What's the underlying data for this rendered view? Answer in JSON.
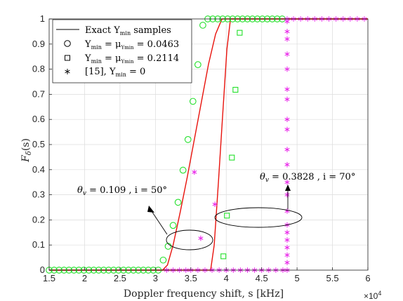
{
  "chart_data": {
    "type": "line",
    "xlabel": "Doppler frequency shift, s [kHz]",
    "ylabel": "F_δ(s)",
    "x_exponent": "×10^4",
    "xlim": [
      15000,
      60000
    ],
    "ylim": [
      0,
      1
    ],
    "xticks": [
      15000,
      20000,
      25000,
      30000,
      35000,
      40000,
      45000,
      50000,
      55000,
      60000
    ],
    "xtick_labels": [
      "1.5",
      "2",
      "2.5",
      "3",
      "3.5",
      "4",
      "4.5",
      "5",
      "5.5",
      "6"
    ],
    "yticks": [
      0,
      0.1,
      0.2,
      0.3,
      0.4,
      0.5,
      0.6,
      0.7,
      0.8,
      0.9,
      1
    ],
    "ytick_labels": [
      "0",
      "0.1",
      "0.2",
      "0.3",
      "0.4",
      "0.5",
      "0.6",
      "0.7",
      "0.8",
      "0.9",
      "1"
    ],
    "grid": true,
    "legend_position": "top-left",
    "legend": [
      {
        "label": "Exact Υmin samples",
        "marker": "line",
        "color": "#000000"
      },
      {
        "label": "Υmin = μΥmin = 0.0463",
        "marker": "circle",
        "color": "#000000"
      },
      {
        "label": "Υmin = μΥmin = 0.2114",
        "marker": "square",
        "color": "#000000"
      },
      {
        "label": "[15], Υmin = 0",
        "marker": "star",
        "color": "#000000"
      }
    ],
    "series": [
      {
        "color": "#e8120c",
        "style": "line",
        "x": [
          15000,
          31000,
          31700,
          32500,
          33500,
          34500,
          35500,
          36500,
          37500,
          38500,
          39400,
          60000
        ],
        "y": [
          0,
          0,
          0.02,
          0.1,
          0.23,
          0.37,
          0.52,
          0.67,
          0.82,
          0.94,
          1.0,
          1.0
        ]
      },
      {
        "color": "#e8120c",
        "style": "line",
        "x": [
          15000,
          37800,
          38300,
          38900,
          39500,
          40100,
          40600,
          60000
        ],
        "y": [
          0,
          0,
          0.1,
          0.35,
          0.62,
          0.88,
          1.0,
          1.0
        ]
      },
      {
        "color": "#22e02a",
        "marker": "circle",
        "x": [
          15000,
          15700,
          16400,
          17100,
          17800,
          18500,
          19200,
          19900,
          20600,
          21300,
          22000,
          22700,
          23400,
          24100,
          24800,
          25500,
          26200,
          26900,
          27600,
          28300,
          29000,
          29700,
          30400,
          31100,
          31800,
          32500,
          33200,
          33900,
          34600,
          35300,
          36000,
          36700,
          37400,
          38100,
          38800,
          39500,
          40200,
          40900,
          41600,
          42300,
          43000,
          43700,
          44400,
          45100,
          45800,
          46500,
          47200,
          47900
        ],
        "y": [
          0,
          0,
          0,
          0,
          0,
          0,
          0,
          0,
          0,
          0,
          0,
          0,
          0,
          0,
          0,
          0,
          0,
          0,
          0,
          0,
          0,
          0,
          0,
          0.04,
          0.095,
          0.178,
          0.27,
          0.398,
          0.52,
          0.672,
          0.818,
          0.975,
          1,
          1,
          1,
          1,
          1,
          1,
          1,
          1,
          1,
          1,
          1,
          1,
          1,
          1,
          1,
          1
        ]
      },
      {
        "color": "#22e02a",
        "marker": "square",
        "x": [
          39600,
          40100,
          40800,
          41300,
          41900
        ],
        "y": [
          0.055,
          0.217,
          0.448,
          0.718,
          0.945
        ]
      },
      {
        "color": "#e81ee8",
        "marker": "star",
        "x": [
          31600,
          32500,
          33400,
          34300,
          35000,
          36000,
          37000,
          38000,
          39000,
          40000,
          41000,
          42000,
          43000,
          44000,
          45000,
          46000,
          47000,
          48000,
          48600,
          48600,
          48600,
          48600,
          48600,
          48600,
          48600,
          48600,
          48600,
          48600,
          48600,
          48600,
          48600,
          48600,
          48600,
          48600,
          48600,
          48600,
          48600,
          48600,
          48600,
          48600,
          49500,
          50500,
          51500,
          52500,
          53500,
          54500,
          55500,
          56500,
          57500,
          58500,
          59500,
          36400,
          38400,
          35500
        ],
        "y": [
          0,
          0,
          0,
          0,
          0,
          0,
          0,
          0,
          0,
          0,
          0,
          0,
          0,
          0,
          0,
          0,
          0,
          0,
          0,
          0.03,
          0.06,
          0.09,
          0.12,
          0.15,
          0.18,
          0.235,
          0.3,
          0.35,
          0.42,
          0.48,
          0.56,
          0.6,
          0.68,
          0.72,
          0.8,
          0.86,
          0.92,
          0.95,
          0.99,
          1,
          1,
          1,
          1,
          1,
          1,
          1,
          1,
          1,
          1,
          1,
          1,
          0.127,
          0.262,
          0.39
        ]
      }
    ],
    "annotations": [
      {
        "text": "θv = 0.109 , i = 50°",
        "points_to": [
          34000,
          0.12
        ]
      },
      {
        "text": "θv = 0.3828 , i = 70°",
        "points_to": [
          44000,
          0.28
        ]
      }
    ],
    "axis_exponent_label": "×10^4"
  },
  "labels": {
    "xlabel": "Doppler frequency shift, s [kHz]",
    "exponent_base": "×10",
    "exponent_pow": "4",
    "ylabel_main": "F",
    "ylabel_sub": "δ",
    "ylabel_arg": "(s)",
    "legend1": "Exact Υ",
    "legend1_sub": "min",
    "legend1_tail": " samples",
    "legend2_pre": "Υ",
    "legend2_sub1": "min",
    "legend2_mid": " = μ",
    "legend2_sub2": "Υmin",
    "legend2_val": " = 0.0463",
    "legend3_pre": "Υ",
    "legend3_sub1": "min",
    "legend3_mid": " = μ",
    "legend3_sub2": "Υmin",
    "legend3_val": " = 0.2114",
    "legend4_pre": "[15], Υ",
    "legend4_sub": "min",
    "legend4_val": " = 0",
    "ann1_pre": "θ",
    "ann1_sub": "v",
    "ann1_tail": " = 0.109 , i = 50°",
    "ann2_pre": "θ",
    "ann2_sub": "v",
    "ann2_tail": " = 0.3828 , i = 70°"
  }
}
